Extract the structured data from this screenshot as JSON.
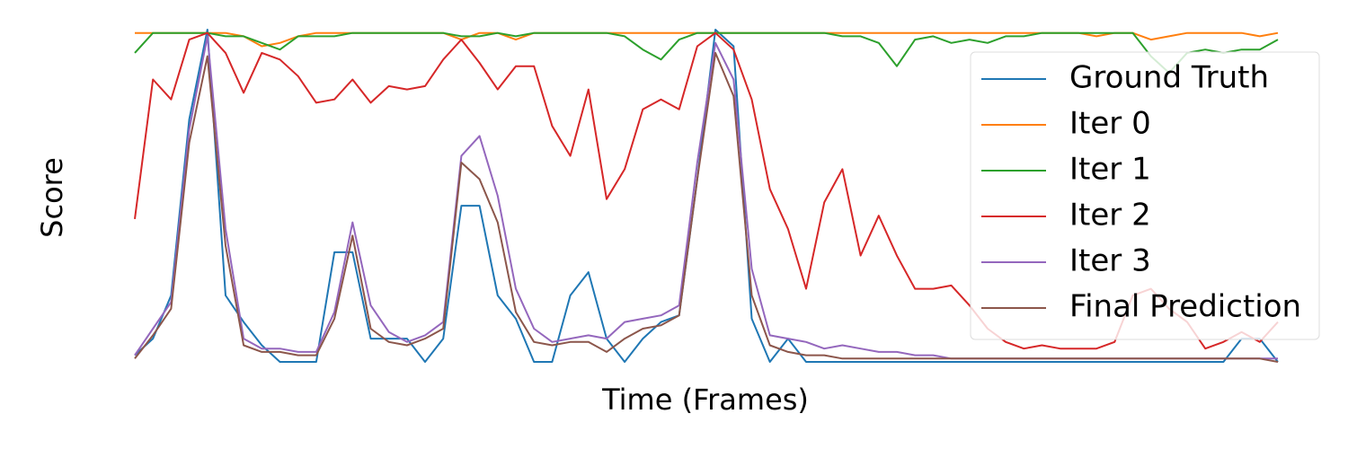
{
  "chart_data": {
    "type": "line",
    "xlabel": "Time (Frames)",
    "ylabel": "Score",
    "ylim": [
      0,
      1
    ],
    "legend": "upper right",
    "grid": false,
    "series": [
      {
        "name": "Ground Truth",
        "color": "#1f77b4",
        "values": [
          0.02,
          0.07,
          0.2,
          0.73,
          1.0,
          0.2,
          0.12,
          0.05,
          0,
          0,
          0,
          0.33,
          0.33,
          0.07,
          0.07,
          0.07,
          0,
          0.07,
          0.47,
          0.47,
          0.2,
          0.13,
          0,
          0,
          0.2,
          0.27,
          0.07,
          0,
          0.07,
          0.12,
          0.14,
          0.55,
          1.0,
          0.95,
          0.13,
          0,
          0.07,
          0,
          0,
          0,
          0,
          0,
          0,
          0,
          0,
          0,
          0,
          0,
          0,
          0,
          0,
          0,
          0,
          0,
          0,
          0,
          0,
          0,
          0,
          0,
          0,
          0.07,
          0.07,
          0
        ]
      },
      {
        "name": "Iter 0",
        "color": "#ff7f0e",
        "values": [
          0.99,
          0.99,
          0.99,
          0.99,
          0.99,
          0.99,
          0.98,
          0.95,
          0.96,
          0.98,
          0.99,
          0.99,
          0.99,
          0.99,
          0.99,
          0.99,
          0.99,
          0.99,
          0.97,
          0.99,
          0.99,
          0.97,
          0.99,
          0.99,
          0.99,
          0.99,
          0.99,
          0.99,
          0.99,
          0.99,
          0.99,
          0.99,
          0.99,
          0.99,
          0.99,
          0.99,
          0.99,
          0.99,
          0.99,
          0.99,
          0.99,
          0.99,
          0.99,
          0.99,
          0.99,
          0.99,
          0.99,
          0.99,
          0.99,
          0.99,
          0.99,
          0.99,
          0.99,
          0.98,
          0.99,
          0.99,
          0.97,
          0.98,
          0.99,
          0.99,
          0.99,
          0.99,
          0.98,
          0.99
        ]
      },
      {
        "name": "Iter 1",
        "color": "#2ca02c",
        "values": [
          0.93,
          0.99,
          0.99,
          0.99,
          0.99,
          0.98,
          0.98,
          0.96,
          0.94,
          0.98,
          0.98,
          0.98,
          0.99,
          0.99,
          0.99,
          0.99,
          0.99,
          0.99,
          0.98,
          0.98,
          0.99,
          0.98,
          0.99,
          0.99,
          0.99,
          0.99,
          0.99,
          0.98,
          0.94,
          0.91,
          0.97,
          0.99,
          0.99,
          0.99,
          0.99,
          0.99,
          0.99,
          0.99,
          0.99,
          0.98,
          0.98,
          0.96,
          0.89,
          0.97,
          0.98,
          0.96,
          0.97,
          0.96,
          0.98,
          0.98,
          0.99,
          0.99,
          0.99,
          0.99,
          0.99,
          0.99,
          0.92,
          0.87,
          0.93,
          0.94,
          0.93,
          0.94,
          0.94,
          0.97
        ]
      },
      {
        "name": "Iter 2",
        "color": "#d62728",
        "values": [
          0.43,
          0.85,
          0.79,
          0.97,
          0.99,
          0.93,
          0.81,
          0.93,
          0.91,
          0.86,
          0.78,
          0.79,
          0.85,
          0.78,
          0.83,
          0.82,
          0.83,
          0.91,
          0.97,
          0.9,
          0.82,
          0.89,
          0.89,
          0.71,
          0.62,
          0.82,
          0.49,
          0.58,
          0.76,
          0.79,
          0.76,
          0.95,
          0.99,
          0.94,
          0.79,
          0.52,
          0.4,
          0.22,
          0.48,
          0.58,
          0.32,
          0.44,
          0.32,
          0.22,
          0.22,
          0.23,
          0.17,
          0.1,
          0.06,
          0.04,
          0.05,
          0.04,
          0.04,
          0.04,
          0.06,
          0.2,
          0.22,
          0.16,
          0.12,
          0.04,
          0.06,
          0.09,
          0.06,
          0.12
        ]
      },
      {
        "name": "Iter 3",
        "color": "#9467bd",
        "values": [
          0.02,
          0.1,
          0.18,
          0.7,
          0.98,
          0.4,
          0.07,
          0.04,
          0.04,
          0.03,
          0.03,
          0.15,
          0.42,
          0.17,
          0.09,
          0.06,
          0.08,
          0.12,
          0.62,
          0.68,
          0.5,
          0.22,
          0.1,
          0.06,
          0.07,
          0.08,
          0.07,
          0.12,
          0.13,
          0.14,
          0.17,
          0.6,
          0.96,
          0.85,
          0.28,
          0.08,
          0.07,
          0.06,
          0.04,
          0.05,
          0.04,
          0.03,
          0.03,
          0.02,
          0.02,
          0.01,
          0.01,
          0.01,
          0.01,
          0.01,
          0.01,
          0.01,
          0.01,
          0.01,
          0.01,
          0.01,
          0.01,
          0.01,
          0.01,
          0.01,
          0.01,
          0.01,
          0.01,
          0.01
        ]
      },
      {
        "name": "Final Prediction",
        "color": "#8c564b",
        "values": [
          0.01,
          0.08,
          0.16,
          0.66,
          0.92,
          0.35,
          0.05,
          0.03,
          0.03,
          0.02,
          0.02,
          0.13,
          0.38,
          0.1,
          0.06,
          0.05,
          0.07,
          0.1,
          0.6,
          0.55,
          0.42,
          0.15,
          0.06,
          0.05,
          0.06,
          0.06,
          0.03,
          0.07,
          0.1,
          0.11,
          0.14,
          0.55,
          0.93,
          0.8,
          0.2,
          0.05,
          0.03,
          0.02,
          0.02,
          0.01,
          0.01,
          0.01,
          0.01,
          0.01,
          0.01,
          0.01,
          0.01,
          0.01,
          0.01,
          0.01,
          0.01,
          0.01,
          0.01,
          0.01,
          0.01,
          0.01,
          0.01,
          0.01,
          0.01,
          0.01,
          0.01,
          0.01,
          0.01,
          0
        ]
      }
    ]
  }
}
